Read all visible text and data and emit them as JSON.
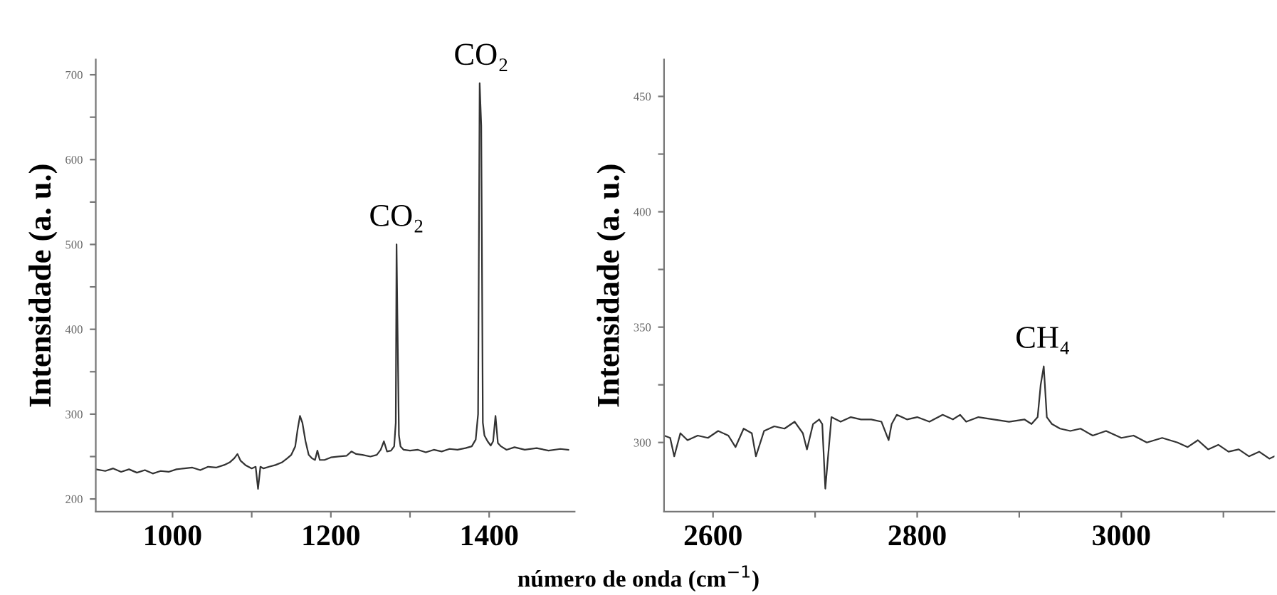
{
  "chart_data": [
    {
      "type": "line",
      "ylabel": "Intensidade (a. u.)",
      "xlabel": "número de onda (cm$^{−1}$)",
      "series": [
        {
          "color": "#333333",
          "x": [
            903,
            915,
            925,
            935,
            945,
            955,
            965,
            975,
            985,
            995,
            1005,
            1015,
            1025,
            1035,
            1045,
            1055,
            1065,
            1072,
            1078,
            1082,
            1086,
            1092,
            1100,
            1105,
            1108,
            1111,
            1115,
            1122,
            1130,
            1138,
            1145,
            1150,
            1155,
            1158,
            1161,
            1164,
            1168,
            1172,
            1176,
            1180,
            1183,
            1186,
            1192,
            1200,
            1210,
            1220,
            1226,
            1232,
            1240,
            1250,
            1258,
            1263,
            1267,
            1271,
            1276,
            1280,
            1282,
            1283,
            1284,
            1286,
            1288,
            1292,
            1300,
            1310,
            1320,
            1330,
            1340,
            1350,
            1360,
            1370,
            1378,
            1383,
            1386,
            1388,
            1390,
            1392,
            1394,
            1398,
            1402,
            1405,
            1408,
            1411,
            1415,
            1422,
            1432,
            1445,
            1460,
            1475,
            1490,
            1500
          ],
          "values": [
            235,
            233,
            236,
            232,
            235,
            231,
            234,
            230,
            233,
            232,
            235,
            236,
            237,
            234,
            238,
            237,
            240,
            243,
            248,
            253,
            245,
            240,
            236,
            238,
            212,
            238,
            236,
            238,
            240,
            243,
            248,
            252,
            262,
            282,
            298,
            290,
            268,
            252,
            248,
            246,
            257,
            246,
            246,
            249,
            250,
            251,
            256,
            253,
            252,
            250,
            252,
            258,
            268,
            256,
            257,
            262,
            290,
            500,
            420,
            275,
            262,
            258,
            257,
            258,
            255,
            258,
            256,
            259,
            258,
            260,
            262,
            270,
            300,
            690,
            640,
            290,
            275,
            268,
            263,
            268,
            298,
            266,
            262,
            258,
            261,
            258,
            260,
            257,
            259,
            258
          ]
        }
      ],
      "annotations": [
        {
          "text": "CO₂",
          "x": 1283,
          "y": 500
        },
        {
          "text": "CO₂",
          "x": 1390,
          "y": 690
        }
      ],
      "xlim": [
        903,
        1508
      ],
      "ylim": [
        185,
        718
      ],
      "xticks": [
        1000,
        {
          "value": 1100,
          "label": null
        },
        1200,
        {
          "value": 1300,
          "label": null
        },
        1400
      ],
      "yticks": [
        200,
        {
          "value": 250,
          "label": null
        },
        300,
        {
          "value": 350,
          "label": null
        },
        400,
        {
          "value": 450,
          "label": null
        },
        500,
        {
          "value": 550,
          "label": null
        },
        600,
        {
          "value": 650,
          "label": null
        },
        700
      ],
      "grid": false
    },
    {
      "type": "line",
      "ylabel": "Intensidade (a. u.)",
      "series": [
        {
          "color": "#333333",
          "x": [
            2552,
            2558,
            2562,
            2568,
            2575,
            2585,
            2595,
            2605,
            2615,
            2622,
            2630,
            2638,
            2642,
            2650,
            2660,
            2670,
            2680,
            2688,
            2692,
            2698,
            2704,
            2707,
            2710,
            2716,
            2725,
            2735,
            2745,
            2755,
            2765,
            2772,
            2775,
            2780,
            2790,
            2800,
            2812,
            2825,
            2835,
            2842,
            2848,
            2860,
            2875,
            2890,
            2905,
            2912,
            2918,
            2921,
            2924,
            2927,
            2932,
            2940,
            2950,
            2960,
            2972,
            2985,
            3000,
            3012,
            3025,
            3040,
            3055,
            3065,
            3075,
            3085,
            3095,
            3105,
            3115,
            3125,
            3135,
            3145,
            3150
          ],
          "values": [
            303,
            302,
            294,
            304,
            301,
            303,
            302,
            305,
            303,
            298,
            306,
            304,
            294,
            305,
            307,
            306,
            309,
            304,
            297,
            308,
            310,
            308,
            280,
            311,
            309,
            311,
            310,
            310,
            309,
            301,
            308,
            312,
            310,
            311,
            309,
            312,
            310,
            312,
            309,
            311,
            310,
            309,
            310,
            308,
            311,
            325,
            333,
            311,
            308,
            306,
            305,
            306,
            303,
            305,
            302,
            303,
            300,
            302,
            300,
            298,
            301,
            297,
            299,
            296,
            297,
            294,
            296,
            293,
            294
          ]
        }
      ],
      "annotations": [
        {
          "text": "CH₄",
          "x": 2923,
          "y": 333
        }
      ],
      "xlim": [
        2552,
        3150
      ],
      "ylim": [
        270,
        466
      ],
      "xticks": [
        2600,
        {
          "value": 2700,
          "label": null
        },
        2800,
        {
          "value": 2900,
          "label": null
        },
        3000,
        {
          "value": 3100,
          "label": null
        }
      ],
      "yticks": [
        300,
        {
          "value": 325,
          "label": null
        },
        350,
        {
          "value": 375,
          "label": null
        },
        400,
        {
          "value": 425,
          "label": null
        },
        450
      ],
      "grid": false
    }
  ]
}
